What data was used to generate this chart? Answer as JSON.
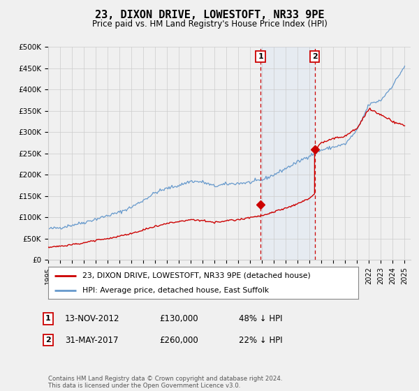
{
  "title": "23, DIXON DRIVE, LOWESTOFT, NR33 9PE",
  "subtitle": "Price paid vs. HM Land Registry's House Price Index (HPI)",
  "ylabel_ticks": [
    "£0",
    "£50K",
    "£100K",
    "£150K",
    "£200K",
    "£250K",
    "£300K",
    "£350K",
    "£400K",
    "£450K",
    "£500K"
  ],
  "ytick_values": [
    0,
    50000,
    100000,
    150000,
    200000,
    250000,
    300000,
    350000,
    400000,
    450000,
    500000
  ],
  "ylim": [
    0,
    500000
  ],
  "xlim_start": 1995.0,
  "xlim_end": 2025.5,
  "red_line_color": "#cc0000",
  "blue_line_color": "#6699cc",
  "marker_color": "#cc0000",
  "dashed_line_color": "#cc0000",
  "highlight_fill_color": "#cce0f5",
  "sale1_x": 2012.87,
  "sale1_y": 130000,
  "sale2_x": 2017.42,
  "sale2_y": 260000,
  "legend_line1": "23, DIXON DRIVE, LOWESTOFT, NR33 9PE (detached house)",
  "legend_line2": "HPI: Average price, detached house, East Suffolk",
  "sale1_date": "13-NOV-2012",
  "sale1_price": "£130,000",
  "sale1_hpi": "48% ↓ HPI",
  "sale2_date": "31-MAY-2017",
  "sale2_price": "£260,000",
  "sale2_hpi": "22% ↓ HPI",
  "footnote": "Contains HM Land Registry data © Crown copyright and database right 2024.\nThis data is licensed under the Open Government Licence v3.0.",
  "bg_color": "#f0f0f0",
  "plot_bg_color": "#f0f0f0",
  "legend_bg_color": "#ffffff",
  "grid_color": "#cccccc"
}
